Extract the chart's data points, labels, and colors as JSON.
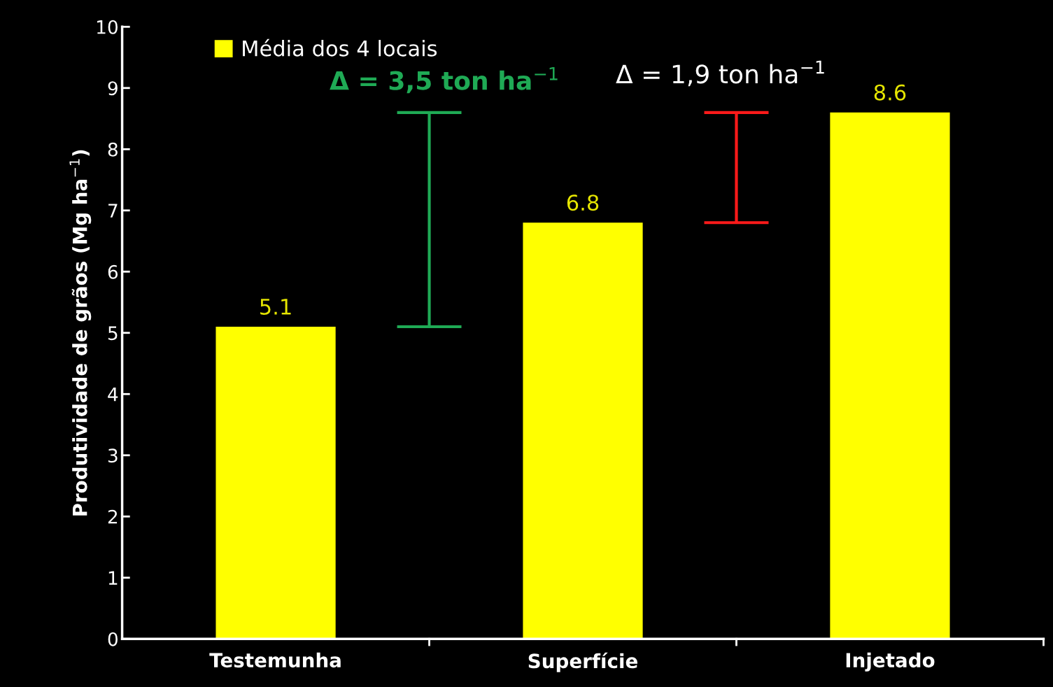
{
  "chart_data": {
    "type": "bar",
    "ylabel": "Produtividade de grãos (Mg ha$^{−1}$)",
    "categories": [
      "Testemunha",
      "Superfície",
      "Injetado"
    ],
    "series": [
      {
        "name": "Média dos 4 locais",
        "color": "#ffff00",
        "values": [
          5.1,
          6.8,
          8.6
        ]
      }
    ],
    "ylim": [
      0,
      10
    ],
    "yticks": [
      0,
      1,
      2,
      3,
      4,
      5,
      6,
      7,
      8,
      9,
      10
    ],
    "data_labels": true,
    "legend": "top left",
    "grid": false,
    "annotations": [
      "Δ = 3,5 ton ha$^{−1}$",
      "Δ = 1,9 ton ha$^{−1}$"
    ]
  }
}
